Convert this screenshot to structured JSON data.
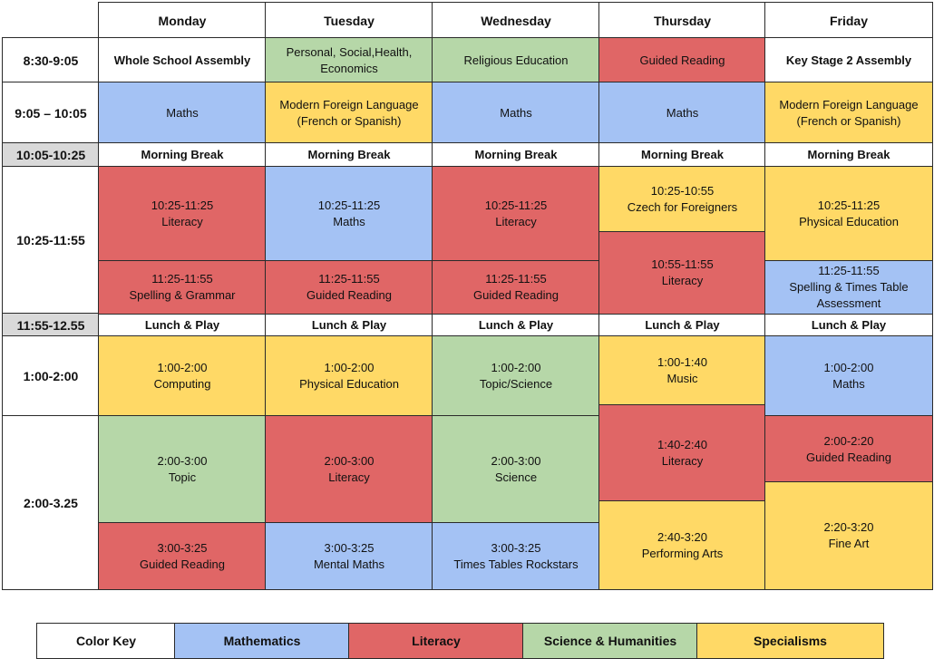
{
  "colors": {
    "mathematics": "#a4c2f4",
    "literacy": "#e06666",
    "science": "#b6d7a8",
    "specialisms": "#ffd966",
    "break": "#d9d9d9"
  },
  "days": [
    "Monday",
    "Tuesday",
    "Wednesday",
    "Thursday",
    "Friday"
  ],
  "times": [
    "8:30-9:05",
    "9:05 – 10:05",
    "10:05-10:25",
    "10:25-11:55",
    "11:55-12.55",
    "1:00-2:00",
    "2:00-3.25"
  ],
  "row1": [
    "Whole School Assembly",
    "Personal, Social,Health, Economics",
    "Religious Education",
    "Guided Reading",
    "Key Stage 2 Assembly"
  ],
  "row2": [
    "Maths",
    "Modern Foreign Language (French or Spanish)",
    "Maths",
    "Maths",
    "Modern Foreign Language (French or Spanish)"
  ],
  "morning_break": "Morning Break",
  "lunch": "Lunch & Play",
  "blocks": {
    "mon1": {
      "time": "10:25-11:25",
      "subject": "Literacy"
    },
    "mon2": {
      "time": "11:25-11:55",
      "subject": "Spelling & Grammar"
    },
    "tue1": {
      "time": "10:25-11:25",
      "subject": "Maths"
    },
    "tue2": {
      "time": "11:25-11:55",
      "subject": "Guided Reading"
    },
    "wed1": {
      "time": "10:25-11:25",
      "subject": "Literacy"
    },
    "wed2": {
      "time": "11:25-11:55",
      "subject": "Guided Reading"
    },
    "thu1": {
      "time": "10:25-10:55",
      "subject": "Czech for Foreigners"
    },
    "thu2": {
      "time": "10:55-11:55",
      "subject": "Literacy"
    },
    "fri1": {
      "time": "10:25-11:25",
      "subject": "Physical Education"
    },
    "fri2": {
      "time": "11:25-11:55",
      "subject": "Spelling & Times Table Assessment"
    },
    "mon3": {
      "time": "1:00-2:00",
      "subject": "Computing"
    },
    "mon4": {
      "time": "2:00-3:00",
      "subject": "Topic"
    },
    "mon5": {
      "time": "3:00-3:25",
      "subject": "Guided Reading"
    },
    "tue3": {
      "time": "1:00-2:00",
      "subject": "Physical Education"
    },
    "tue4": {
      "time": "2:00-3:00",
      "subject": "Literacy"
    },
    "tue5": {
      "time": "3:00-3:25",
      "subject": "Mental Maths"
    },
    "wed3": {
      "time": "1:00-2:00",
      "subject": "Topic/Science"
    },
    "wed4": {
      "time": "2:00-3:00",
      "subject": "Science"
    },
    "wed5": {
      "time": "3:00-3:25",
      "subject": "Times Tables Rockstars"
    },
    "thu3": {
      "time": "1:00-1:40",
      "subject": "Music"
    },
    "thu4": {
      "time": "1:40-2:40",
      "subject": "Literacy"
    },
    "thu5": {
      "time": "2:40-3:20",
      "subject": "Performing Arts"
    },
    "fri3": {
      "time": "1:00-2:00",
      "subject": "Maths"
    },
    "fri4": {
      "time": "2:00-2:20",
      "subject": "Guided Reading"
    },
    "fri5": {
      "time": "2:20-3:20",
      "subject": "Fine Art"
    }
  },
  "color_key": {
    "label": "Color Key",
    "items": [
      "Mathematics",
      "Literacy",
      "Science & Humanities",
      "Specialisms"
    ]
  }
}
